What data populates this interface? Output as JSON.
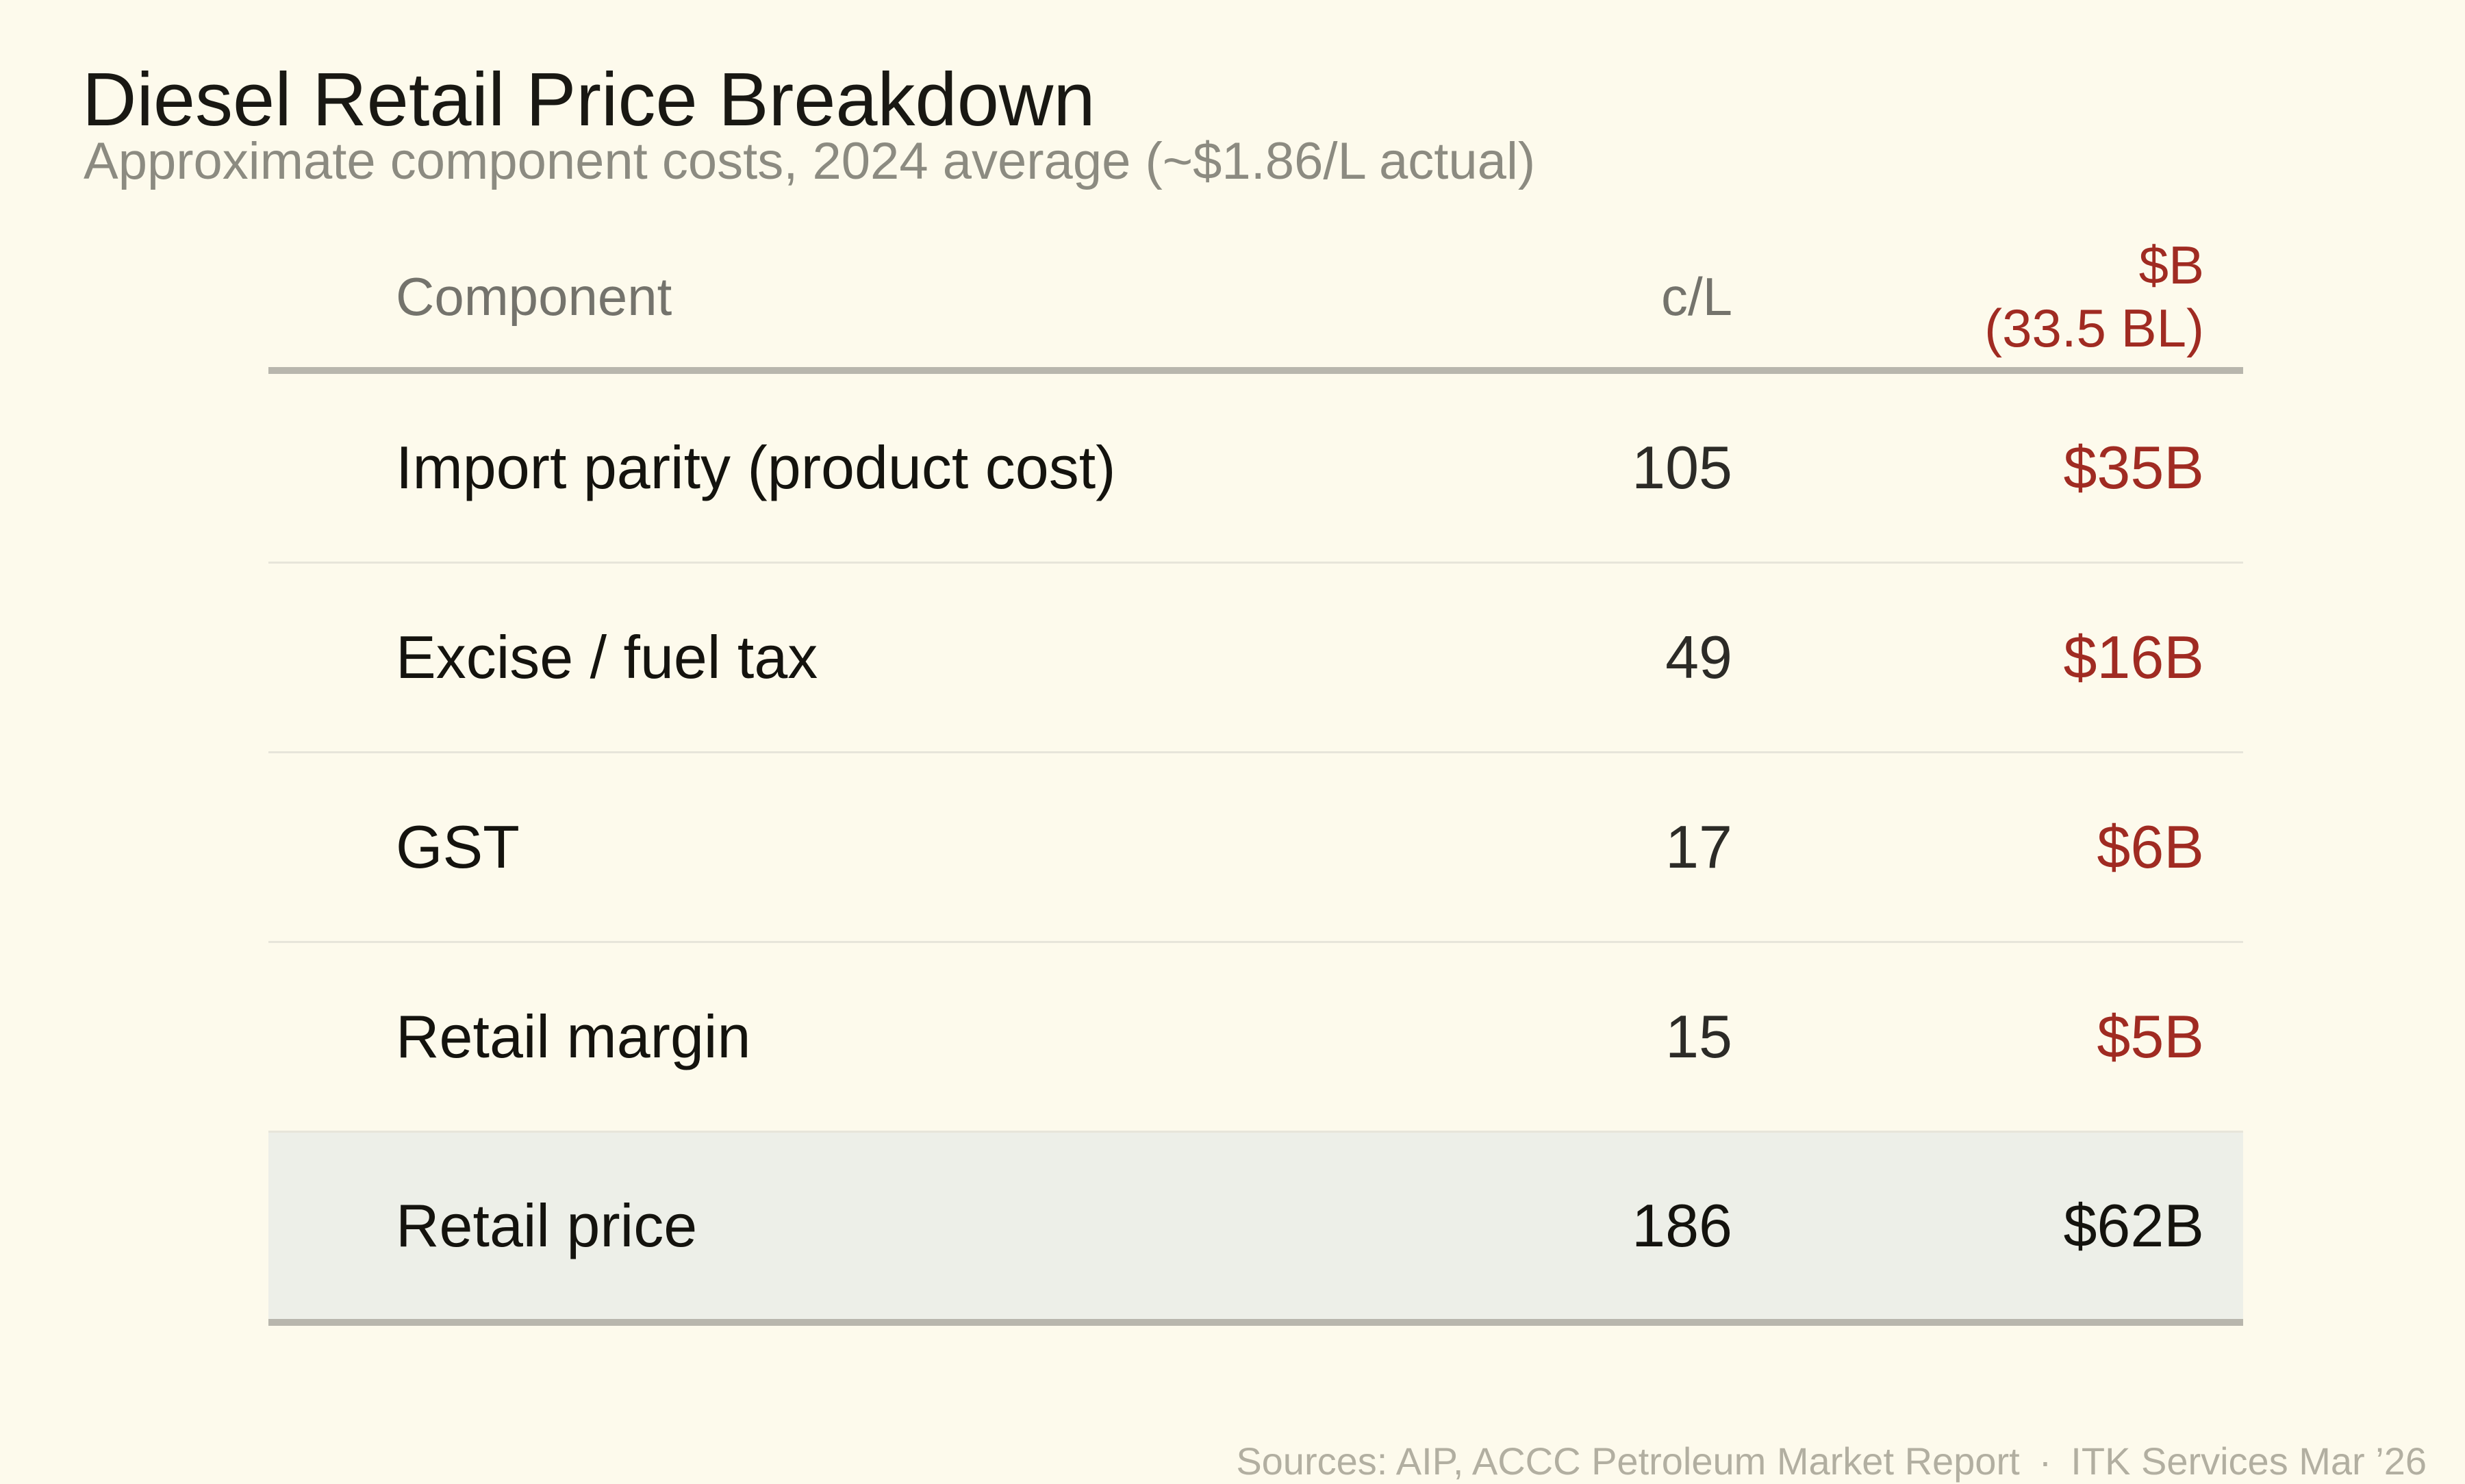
{
  "title": "Diesel Retail Price Breakdown",
  "subtitle": "Approximate component costs, 2024 average (~$1.86/L actual)",
  "table": {
    "header": {
      "component": "Component",
      "cpl": "c/L",
      "billions_line1": "$B",
      "billions_line2": "(33.5 BL)"
    },
    "rows": [
      {
        "component": "Import parity (product cost)",
        "cpl": "105",
        "billions": "$35B"
      },
      {
        "component": "Excise / fuel tax",
        "cpl": "49",
        "billions": "$16B"
      },
      {
        "component": "GST",
        "cpl": "17",
        "billions": "$6B"
      },
      {
        "component": "Retail margin",
        "cpl": "15",
        "billions": "$5B"
      }
    ],
    "total_row": {
      "component": "Retail price",
      "cpl": "186",
      "billions": "$62B"
    }
  },
  "footer": "Sources: AIP, ACCC Petroleum Market Report · ITK Services Mar ’26",
  "colors": {
    "background": "#fdfaec",
    "accent_red": "#a02b22",
    "text_black": "#14130e",
    "text_gray": "#8c8b81",
    "header_gray": "#74736c",
    "total_row_background": "#edefe8",
    "rule_gray": "#b8b6ad",
    "separator": "#e7e5da",
    "footer_gray": "#b2afa1"
  },
  "chart_data": {
    "type": "table",
    "title": "Diesel Retail Price Breakdown",
    "subtitle": "Approximate component costs, 2024 average (~$1.86/L actual)",
    "columns": [
      "Component",
      "c/L",
      "$B (33.5 BL)"
    ],
    "rows": [
      {
        "component": "Import parity (product cost)",
        "cents_per_litre": 105,
        "billions_usd": 35
      },
      {
        "component": "Excise / fuel tax",
        "cents_per_litre": 49,
        "billions_usd": 16
      },
      {
        "component": "GST",
        "cents_per_litre": 17,
        "billions_usd": 6
      },
      {
        "component": "Retail margin",
        "cents_per_litre": 15,
        "billions_usd": 5
      },
      {
        "component": "Retail price",
        "cents_per_litre": 186,
        "billions_usd": 62,
        "is_total": true
      }
    ],
    "notes": "Total volume basis 33.5 BL; retail price ~$1.86/L actual 2024 average"
  }
}
